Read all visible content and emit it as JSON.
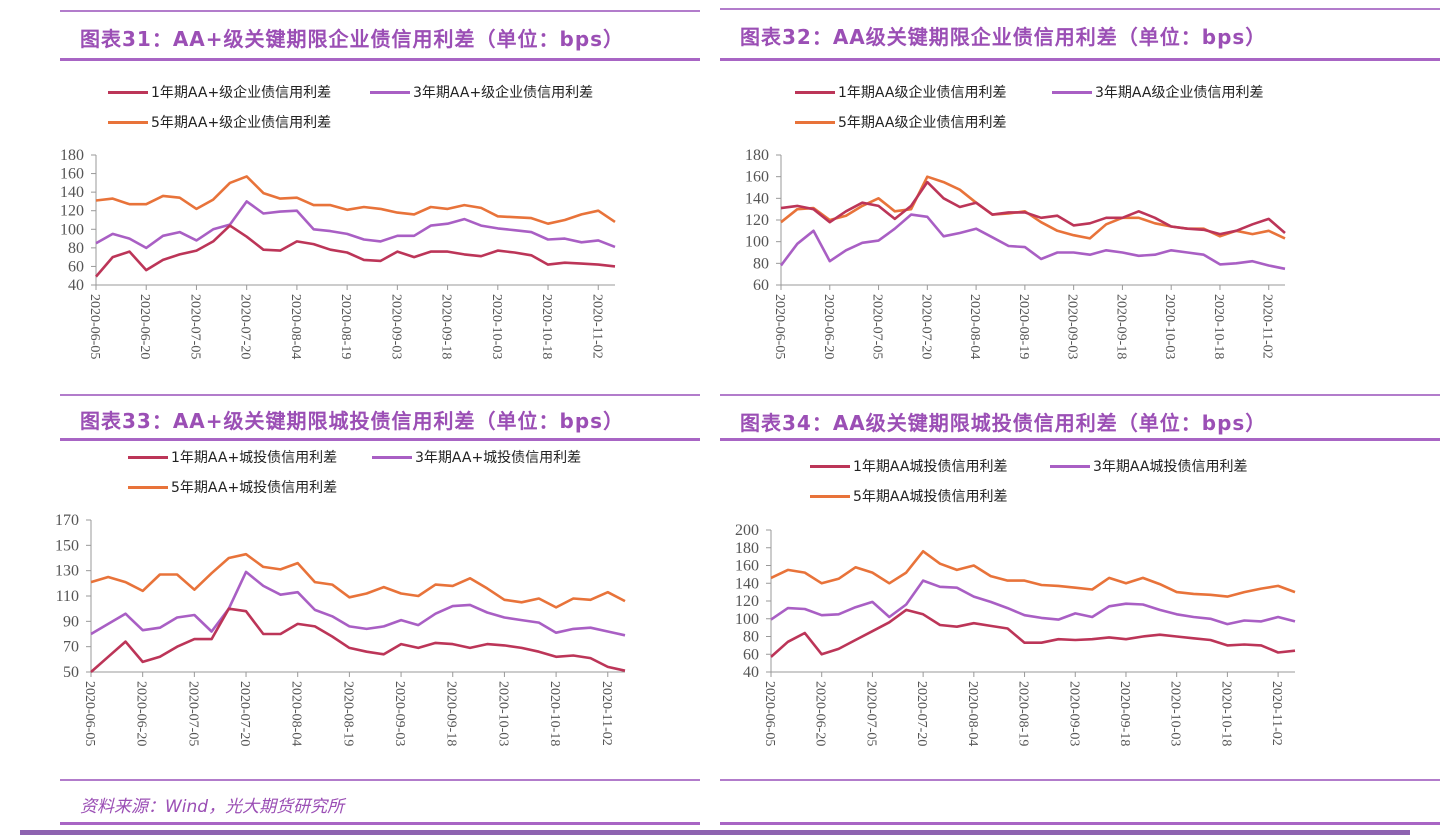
{
  "colors": {
    "one_year": "#bc3558",
    "three_year": "#a95fc4",
    "five_year": "#e8733a",
    "accent": "#9b4fb5"
  },
  "source": "资料来源：Wind，光大期货研究所",
  "chart_data": [
    {
      "type": "line",
      "title": "图表31：AA+级关键期限企业债信用利差（单位：bps）",
      "legend": "top",
      "ylim": [
        40,
        180
      ],
      "yticks": [
        40,
        60,
        80,
        100,
        120,
        140,
        160,
        180
      ],
      "xtick_labels": [
        "2020-06-05",
        "2020-06-20",
        "2020-07-05",
        "2020-07-20",
        "2020-08-04",
        "2020-08-19",
        "2020-09-03",
        "2020-09-18",
        "2020-10-03",
        "2020-10-18",
        "2020-11-02"
      ],
      "x": [
        "2020-06-05",
        "2020-06-10",
        "2020-06-15",
        "2020-06-20",
        "2020-06-25",
        "2020-06-30",
        "2020-07-05",
        "2020-07-10",
        "2020-07-15",
        "2020-07-20",
        "2020-07-25",
        "2020-07-30",
        "2020-08-04",
        "2020-08-09",
        "2020-08-14",
        "2020-08-19",
        "2020-08-24",
        "2020-08-29",
        "2020-09-03",
        "2020-09-08",
        "2020-09-13",
        "2020-09-18",
        "2020-09-23",
        "2020-09-28",
        "2020-10-03",
        "2020-10-08",
        "2020-10-13",
        "2020-10-18",
        "2020-10-23",
        "2020-10-28",
        "2020-11-02",
        "2020-11-07"
      ],
      "series": [
        {
          "name": "1年期AA+级企业债信用利差",
          "values": [
            49,
            70,
            76,
            56,
            67,
            73,
            77,
            87,
            104,
            92,
            78,
            77,
            87,
            84,
            78,
            75,
            67,
            66,
            76,
            70,
            76,
            76,
            73,
            71,
            77,
            75,
            72,
            62,
            64,
            63,
            62,
            60
          ]
        },
        {
          "name": "3年期AA+级企业债信用利差",
          "values": [
            85,
            95,
            90,
            80,
            93,
            97,
            88,
            100,
            105,
            130,
            117,
            119,
            120,
            100,
            98,
            95,
            89,
            87,
            93,
            93,
            104,
            106,
            111,
            104,
            101,
            99,
            97,
            89,
            90,
            86,
            88,
            81
          ]
        },
        {
          "name": "5年期AA+级企业债信用利差",
          "values": [
            131,
            133,
            127,
            127,
            136,
            134,
            122,
            132,
            150,
            157,
            139,
            133,
            134,
            126,
            126,
            121,
            124,
            122,
            118,
            116,
            124,
            122,
            126,
            123,
            114,
            113,
            112,
            106,
            110,
            116,
            120,
            108
          ]
        }
      ]
    },
    {
      "type": "line",
      "title": "图表32：AA级关键期限企业债信用利差（单位：bps）",
      "legend": "top",
      "ylim": [
        60,
        180
      ],
      "yticks": [
        60,
        80,
        100,
        120,
        140,
        160,
        180
      ],
      "xtick_labels": [
        "2020-06-05",
        "2020-06-20",
        "2020-07-05",
        "2020-07-20",
        "2020-08-04",
        "2020-08-19",
        "2020-09-03",
        "2020-09-18",
        "2020-10-03",
        "2020-10-18",
        "2020-11-02"
      ],
      "x": [
        "2020-06-05",
        "2020-06-10",
        "2020-06-15",
        "2020-06-20",
        "2020-06-25",
        "2020-06-30",
        "2020-07-05",
        "2020-07-10",
        "2020-07-15",
        "2020-07-20",
        "2020-07-25",
        "2020-07-30",
        "2020-08-04",
        "2020-08-09",
        "2020-08-14",
        "2020-08-19",
        "2020-08-24",
        "2020-08-29",
        "2020-09-03",
        "2020-09-08",
        "2020-09-13",
        "2020-09-18",
        "2020-09-23",
        "2020-09-28",
        "2020-10-03",
        "2020-10-08",
        "2020-10-13",
        "2020-10-18",
        "2020-10-23",
        "2020-10-28",
        "2020-11-02",
        "2020-11-07"
      ],
      "series": [
        {
          "name": "1年期AA级企业债信用利差",
          "values": [
            131,
            133,
            130,
            118,
            128,
            136,
            133,
            121,
            133,
            155,
            140,
            132,
            136,
            125,
            127,
            127,
            122,
            124,
            115,
            117,
            122,
            122,
            128,
            122,
            114,
            112,
            111,
            107,
            110,
            116,
            121,
            108
          ]
        },
        {
          "name": "3年期AA级企业债信用利差",
          "values": [
            78,
            98,
            110,
            82,
            92,
            99,
            101,
            112,
            125,
            123,
            105,
            108,
            112,
            104,
            96,
            95,
            84,
            90,
            90,
            88,
            92,
            90,
            87,
            88,
            92,
            90,
            88,
            79,
            80,
            82,
            78,
            75
          ]
        },
        {
          "name": "5年期AA级企业债信用利差",
          "values": [
            118,
            130,
            131,
            120,
            124,
            133,
            140,
            128,
            130,
            160,
            155,
            148,
            136,
            125,
            126,
            128,
            118,
            110,
            106,
            103,
            116,
            122,
            122,
            117,
            114,
            112,
            112,
            105,
            110,
            107,
            110,
            103
          ]
        }
      ]
    },
    {
      "type": "line",
      "title": "图表33：AA+级关键期限城投债信用利差（单位：bps）",
      "legend": "top",
      "ylim": [
        50,
        170
      ],
      "yticks": [
        50,
        70,
        90,
        110,
        130,
        150,
        170
      ],
      "xtick_labels": [
        "2020-06-05",
        "2020-06-20",
        "2020-07-05",
        "2020-07-20",
        "2020-08-04",
        "2020-08-19",
        "2020-09-03",
        "2020-09-18",
        "2020-10-03",
        "2020-10-18",
        "2020-11-02"
      ],
      "x": [
        "2020-06-05",
        "2020-06-10",
        "2020-06-15",
        "2020-06-20",
        "2020-06-25",
        "2020-06-30",
        "2020-07-05",
        "2020-07-10",
        "2020-07-15",
        "2020-07-20",
        "2020-07-25",
        "2020-07-30",
        "2020-08-04",
        "2020-08-09",
        "2020-08-14",
        "2020-08-19",
        "2020-08-24",
        "2020-08-29",
        "2020-09-03",
        "2020-09-08",
        "2020-09-13",
        "2020-09-18",
        "2020-09-23",
        "2020-09-28",
        "2020-10-03",
        "2020-10-08",
        "2020-10-13",
        "2020-10-18",
        "2020-10-23",
        "2020-10-28",
        "2020-11-02",
        "2020-11-07"
      ],
      "series": [
        {
          "name": "1年期AA+城投债信用利差",
          "values": [
            50,
            62,
            74,
            58,
            62,
            70,
            76,
            76,
            100,
            98,
            80,
            80,
            88,
            86,
            78,
            69,
            66,
            64,
            72,
            69,
            73,
            72,
            69,
            72,
            71,
            69,
            66,
            62,
            63,
            61,
            54,
            51
          ]
        },
        {
          "name": "3年期AA+城投债信用利差",
          "values": [
            80,
            88,
            96,
            83,
            85,
            93,
            95,
            82,
            100,
            129,
            118,
            111,
            113,
            99,
            94,
            86,
            84,
            86,
            91,
            87,
            96,
            102,
            103,
            97,
            93,
            91,
            89,
            81,
            84,
            85,
            82,
            79
          ]
        },
        {
          "name": "5年期AA+城投债信用利差",
          "values": [
            121,
            125,
            121,
            114,
            127,
            127,
            115,
            128,
            140,
            143,
            133,
            131,
            136,
            121,
            119,
            109,
            112,
            117,
            112,
            110,
            119,
            118,
            124,
            116,
            107,
            105,
            108,
            101,
            108,
            107,
            113,
            106
          ]
        }
      ]
    },
    {
      "type": "line",
      "title": "图表34：AA级关键期限城投债信用利差（单位：bps）",
      "legend": "top",
      "ylim": [
        40,
        200
      ],
      "yticks": [
        40,
        60,
        80,
        100,
        120,
        140,
        160,
        180,
        200
      ],
      "xtick_labels": [
        "2020-06-05",
        "2020-06-20",
        "2020-07-05",
        "2020-07-20",
        "2020-08-04",
        "2020-08-19",
        "2020-09-03",
        "2020-09-18",
        "2020-10-03",
        "2020-10-18",
        "2020-11-02"
      ],
      "x": [
        "2020-06-05",
        "2020-06-10",
        "2020-06-15",
        "2020-06-20",
        "2020-06-25",
        "2020-06-30",
        "2020-07-05",
        "2020-07-10",
        "2020-07-15",
        "2020-07-20",
        "2020-07-25",
        "2020-07-30",
        "2020-08-04",
        "2020-08-09",
        "2020-08-14",
        "2020-08-19",
        "2020-08-24",
        "2020-08-29",
        "2020-09-03",
        "2020-09-08",
        "2020-09-13",
        "2020-09-18",
        "2020-09-23",
        "2020-09-28",
        "2020-10-03",
        "2020-10-08",
        "2020-10-13",
        "2020-10-18",
        "2020-10-23",
        "2020-10-28",
        "2020-11-02",
        "2020-11-07"
      ],
      "series": [
        {
          "name": "1年期AA城投债信用利差",
          "values": [
            57,
            74,
            84,
            60,
            66,
            76,
            86,
            96,
            110,
            105,
            93,
            91,
            95,
            92,
            89,
            73,
            73,
            77,
            76,
            77,
            79,
            77,
            80,
            82,
            80,
            78,
            76,
            70,
            71,
            70,
            62,
            64
          ]
        },
        {
          "name": "3年期AA城投债信用利差",
          "values": [
            99,
            112,
            111,
            104,
            105,
            113,
            119,
            102,
            116,
            143,
            136,
            135,
            125,
            119,
            112,
            104,
            101,
            99,
            106,
            102,
            114,
            117,
            116,
            110,
            105,
            102,
            100,
            94,
            98,
            97,
            102,
            97
          ]
        },
        {
          "name": "5年期AA城投债信用利差",
          "values": [
            146,
            155,
            152,
            140,
            145,
            158,
            152,
            140,
            152,
            176,
            162,
            155,
            160,
            148,
            143,
            143,
            138,
            137,
            135,
            133,
            146,
            140,
            146,
            139,
            130,
            128,
            127,
            125,
            130,
            134,
            137,
            130
          ]
        }
      ]
    }
  ]
}
